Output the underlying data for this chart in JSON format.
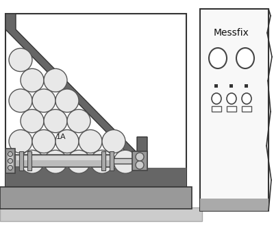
{
  "bg_color": "#ffffff",
  "frame_fill": "#f0f0f0",
  "frame_edge": "#333333",
  "ramp_fill": "#666666",
  "ramp_edge": "#333333",
  "circle_fill": "#e8e8e8",
  "circle_edge": "#555555",
  "base_fill": "#777777",
  "platform_fill": "#999999",
  "platform_edge": "#333333",
  "cyl_body_fill": "#bbbbbb",
  "cyl_dark": "#888888",
  "cyl_light": "#dddddd",
  "panel_fill": "#f8f8f8",
  "panel_edge": "#333333",
  "messfix_text": "Messfix",
  "label_1A": "1A"
}
